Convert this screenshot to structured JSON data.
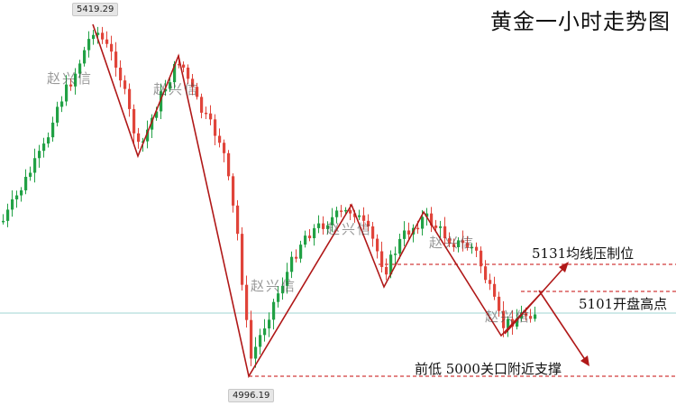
{
  "title": "黄金一小时走势图",
  "watermark": "赵兴信",
  "annotations": {
    "resistance": "5131均线压制位",
    "open_high": "5101开盘高点",
    "support": "前低  5000关口附近支撑"
  },
  "chart_data": {
    "type": "candlestick",
    "price_labels": {
      "high": "5419.29",
      "low": "4996.19"
    },
    "levels": [
      {
        "name": "5131均线压制位",
        "value": 5131
      },
      {
        "name": "5101开盘高点",
        "value": 5101
      },
      {
        "name": "前低  5000关口附近支撑",
        "value": 5000
      }
    ],
    "colors": {
      "up": "#21a145",
      "down": "#e0443a",
      "trend": "#b01818",
      "level": "#d23c3c",
      "ref": "#9fd6d3"
    }
  }
}
